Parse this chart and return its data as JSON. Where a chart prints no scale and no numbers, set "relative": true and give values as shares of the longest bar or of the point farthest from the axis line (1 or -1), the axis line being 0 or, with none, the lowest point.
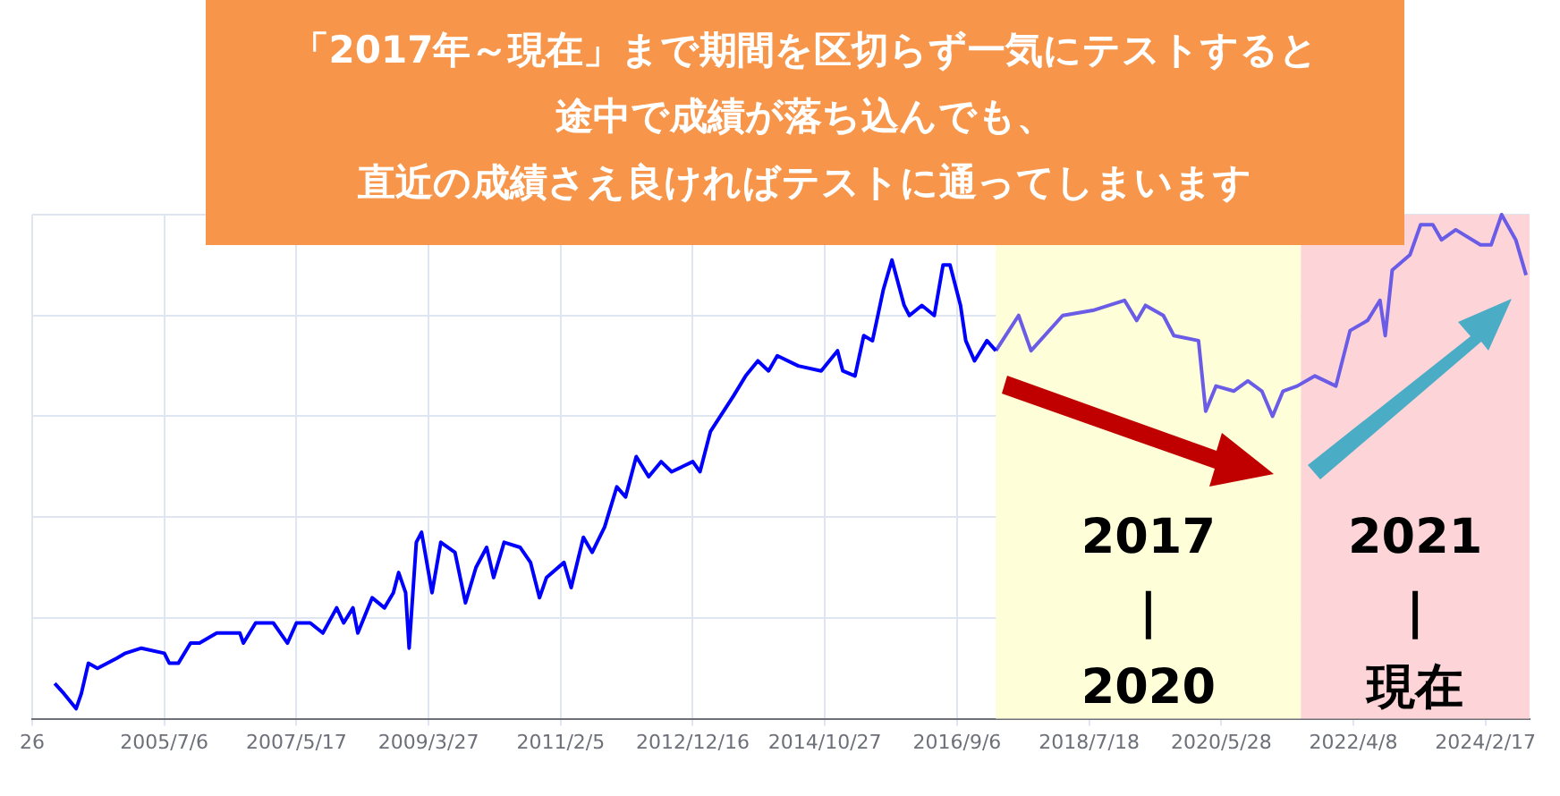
{
  "chart_data": {
    "type": "line",
    "title": "「2017年～現在」まで期間を区切らず一気にテストすると",
    "subtitle": "途中で成績が落ち込んでも、",
    "annotations": [
      "直近の成績さえ良ければテストに通ってしまいます"
    ],
    "relative": true,
    "grid": true,
    "legend": false,
    "marker": "none",
    "line_style": "solid",
    "xlim": [
      "2003-08-26",
      "2024-10-01"
    ],
    "xticks": [
      {
        "value": "2003-08-26",
        "label": "26"
      },
      {
        "value": "2005-07-06",
        "label": "2005/7/6"
      },
      {
        "value": "2007-05-17",
        "label": "2007/5/17"
      },
      {
        "value": "2009-03-27",
        "label": "2009/3/27"
      },
      {
        "value": "2011-02-05",
        "label": "2011/2/5"
      },
      {
        "value": "2012-12-16",
        "label": "2012/12/16"
      },
      {
        "value": "2014-10-27",
        "label": "2014/10/27"
      },
      {
        "value": "2016-09-06",
        "label": "2016/9/6"
      },
      {
        "value": "2018-07-18",
        "label": "2018/7/18"
      },
      {
        "value": "2020-05-28",
        "label": "2020/5/28"
      },
      {
        "value": "2022-04-08",
        "label": "2022/4/8"
      },
      {
        "value": "2024-02-17",
        "label": "2024/2/17"
      }
    ],
    "bands": [
      {
        "axis": "x",
        "from": "2017-03-25",
        "to": "2021-07-12",
        "label": "2017\n|\n2020",
        "color": "#fefed8"
      },
      {
        "axis": "x",
        "from": "2021-07-12",
        "to": "2024-10-01",
        "label": "2021\n|\n現在",
        "color": "#fdd5d8"
      }
    ],
    "series": [
      {
        "color": "#0000ff",
        "x": [
          "2003-12-20",
          "2004-02-05",
          "2004-04-08",
          "2004-05-05",
          "2004-06-10",
          "2004-07-27",
          "2004-11-03",
          "2004-12-18",
          "2005-03-10",
          "2005-07-06",
          "2005-08-01",
          "2005-09-16",
          "2005-11-18",
          "2006-01-03",
          "2006-04-02",
          "2006-07-30",
          "2006-08-17",
          "2006-10-19",
          "2007-01-18",
          "2007-04-01",
          "2007-05-17",
          "2007-07-27",
          "2007-09-30",
          "2007-12-10",
          "2008-01-15",
          "2008-03-03",
          "2008-03-28",
          "2008-06-10",
          "2008-08-12",
          "2008-09-27",
          "2008-10-24",
          "2008-11-29",
          "2008-12-17",
          "2009-01-23",
          "2009-02-19",
          "2009-04-14",
          "2009-05-29",
          "2009-08-10",
          "2009-10-03",
          "2009-11-26",
          "2010-01-20",
          "2010-02-25",
          "2010-04-20",
          "2010-07-11",
          "2010-09-03",
          "2010-10-19",
          "2010-11-24",
          "2011-02-22",
          "2011-03-31",
          "2011-06-02",
          "2011-07-17",
          "2011-09-19",
          "2011-11-21",
          "2012-01-05",
          "2012-02-29",
          "2012-05-03",
          "2012-07-06",
          "2012-08-29",
          "2012-12-16",
          "2013-01-22",
          "2013-03-17",
          "2013-07-13",
          "2013-09-14",
          "2013-11-16",
          "2014-01-10",
          "2014-02-24",
          "2014-06-12",
          "2014-10-08",
          "2014-12-31",
          "2015-01-27",
          "2015-03-31",
          "2015-05-15",
          "2015-06-29",
          "2015-08-23",
          "2015-10-07",
          "2015-12-09",
          "2016-01-05",
          "2016-03-09",
          "2016-05-12",
          "2016-06-26",
          "2016-08-01",
          "2016-09-24",
          "2016-10-21",
          "2016-12-05",
          "2017-02-07",
          "2017-03-25"
        ],
        "values": [
          0.07,
          0.05,
          0.02,
          0.05,
          0.11,
          0.1,
          0.12,
          0.13,
          0.14,
          0.13,
          0.11,
          0.11,
          0.15,
          0.15,
          0.17,
          0.17,
          0.15,
          0.19,
          0.19,
          0.15,
          0.19,
          0.19,
          0.17,
          0.22,
          0.19,
          0.22,
          0.17,
          0.24,
          0.22,
          0.25,
          0.29,
          0.25,
          0.14,
          0.35,
          0.37,
          0.25,
          0.35,
          0.33,
          0.23,
          0.3,
          0.34,
          0.28,
          0.35,
          0.34,
          0.31,
          0.24,
          0.28,
          0.31,
          0.26,
          0.36,
          0.33,
          0.38,
          0.46,
          0.44,
          0.52,
          0.48,
          0.51,
          0.49,
          0.51,
          0.49,
          0.57,
          0.64,
          0.68,
          0.71,
          0.69,
          0.72,
          0.7,
          0.69,
          0.73,
          0.69,
          0.68,
          0.76,
          0.75,
          0.85,
          0.91,
          0.82,
          0.8,
          0.82,
          0.8,
          0.9,
          0.9,
          0.82,
          0.75,
          0.71,
          0.75,
          0.73
        ]
      },
      {
        "color": "#6a5ce6",
        "x": [
          "2017-03-25",
          "2017-07-20",
          "2017-09-22",
          "2018-03-04",
          "2018-08-06",
          "2019-01-16",
          "2019-03-20",
          "2019-05-04",
          "2019-08-04",
          "2019-09-27",
          "2020-02-01",
          "2020-03-09",
          "2020-05-01",
          "2020-07-31",
          "2020-10-12",
          "2020-12-23",
          "2021-02-16",
          "2021-04-11",
          "2021-06-23",
          "2021-09-22",
          "2022-01-08",
          "2022-03-22",
          "2022-06-20",
          "2022-08-23",
          "2022-09-19",
          "2022-10-25",
          "2023-01-24",
          "2023-03-20",
          "2023-05-22",
          "2023-07-06",
          "2023-09-17",
          "2024-01-22",
          "2024-03-17",
          "2024-05-10",
          "2024-07-22",
          "2024-09-13"
        ],
        "values": [
          0.73,
          0.8,
          0.73,
          0.8,
          0.81,
          0.83,
          0.79,
          0.82,
          0.8,
          0.76,
          0.75,
          0.61,
          0.66,
          0.65,
          0.67,
          0.65,
          0.6,
          0.65,
          0.66,
          0.68,
          0.66,
          0.77,
          0.79,
          0.83,
          0.76,
          0.89,
          0.92,
          0.98,
          0.98,
          0.95,
          0.97,
          0.94,
          0.94,
          1,
          0.95,
          0.88
        ]
      }
    ]
  }
}
